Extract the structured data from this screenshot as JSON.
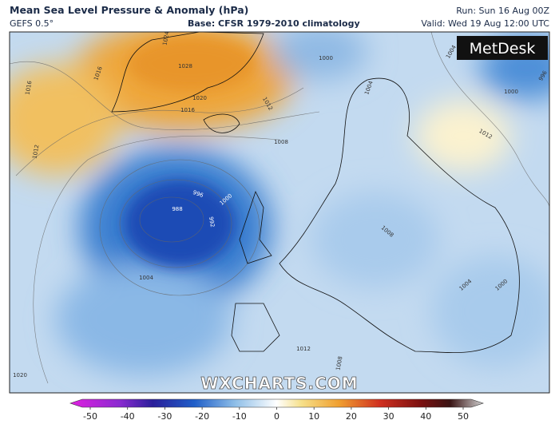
{
  "header": {
    "title": "Mean Sea Level Pressure & Anomaly (hPa)",
    "model": "GEFS 0.5°",
    "base": "Base: CFSR 1979-2010 climatology",
    "run": "Run: Sun 16 Aug 00Z",
    "valid": "Valid: Wed 19 Aug 12:00 UTC"
  },
  "logo": "MetDesk",
  "watermark": "WXCHARTS.COM",
  "colorbar": {
    "ticks": [
      -50,
      -40,
      -30,
      -20,
      -10,
      0,
      10,
      20,
      30,
      40,
      50
    ]
  },
  "isobar_labels": [
    "1024",
    "1028",
    "1016",
    "1020",
    "1016",
    "1012",
    "1008",
    "1000",
    "1004",
    "1004",
    "996",
    "1000",
    "1012",
    "996",
    "988",
    "992",
    "1000",
    "1012",
    "1016",
    "1008",
    "1004",
    "1000",
    "1012",
    "1008",
    "1020",
    "1004"
  ]
}
